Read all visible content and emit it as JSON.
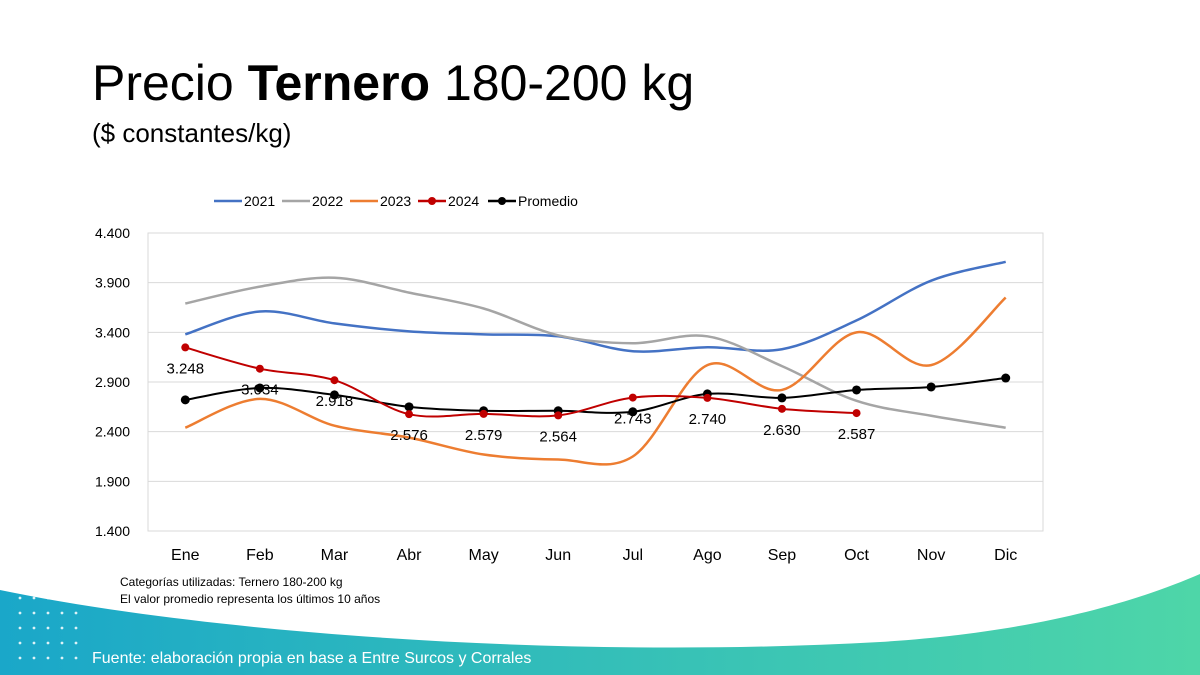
{
  "title": {
    "prefix": "Precio ",
    "bold": "Ternero",
    "suffix": " 180-200 kg"
  },
  "subtitle": "($ constantes/kg)",
  "notes": [
    "Categorías utilizadas: Ternero 180-200 kg",
    "El valor promedio representa los últimos 10 años"
  ],
  "source": "Fuente: elaboración propia en base a Entre Surcos y Corrales",
  "colors": {
    "2021": "#4472C4",
    "2022": "#A5A5A5",
    "2023": "#ED7D31",
    "2024": "#C00000",
    "Promedio": "#000000",
    "footer_start": "#1AA7C9",
    "footer_end": "#4ED6A8"
  },
  "chart_data": {
    "type": "line",
    "categories": [
      "Ene",
      "Feb",
      "Mar",
      "Abr",
      "May",
      "Jun",
      "Jul",
      "Ago",
      "Sep",
      "Oct",
      "Nov",
      "Dic"
    ],
    "ylim": [
      1400,
      4400
    ],
    "yticks": [
      1400,
      1900,
      2400,
      2900,
      3400,
      3900,
      4400
    ],
    "ytick_labels": [
      "1.400",
      "1.900",
      "2.400",
      "2.900",
      "3.400",
      "3.900",
      "4.400"
    ],
    "grid": true,
    "legend": "top",
    "series": [
      {
        "name": "2021",
        "color": "#4472C4",
        "markers": false,
        "values": [
          3380,
          3610,
          3490,
          3410,
          3380,
          3360,
          3210,
          3250,
          3230,
          3520,
          3920,
          4110
        ]
      },
      {
        "name": "2022",
        "color": "#A5A5A5",
        "markers": false,
        "values": [
          3690,
          3860,
          3950,
          3800,
          3640,
          3370,
          3290,
          3360,
          3060,
          2710,
          2560,
          2440
        ]
      },
      {
        "name": "2023",
        "color": "#ED7D31",
        "markers": false,
        "values": [
          2440,
          2730,
          2460,
          2340,
          2170,
          2120,
          2150,
          3070,
          2820,
          3400,
          3070,
          3750
        ]
      },
      {
        "name": "2024",
        "color": "#C00000",
        "markers": true,
        "values": [
          3248,
          3034,
          2918,
          2576,
          2579,
          2564,
          2743,
          2740,
          2630,
          2587,
          null,
          null
        ],
        "labels": [
          "3.248",
          "3.034",
          "2.918",
          "2.576",
          "2.579",
          "2.564",
          "2.743",
          "2.740",
          "2.630",
          "2.587",
          "",
          ""
        ]
      },
      {
        "name": "Promedio",
        "color": "#000000",
        "markers": true,
        "values": [
          2720,
          2840,
          2770,
          2650,
          2610,
          2610,
          2600,
          2780,
          2740,
          2820,
          2850,
          2940
        ]
      }
    ]
  }
}
